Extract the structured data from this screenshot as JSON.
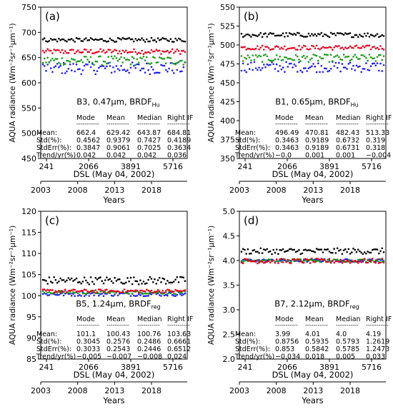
{
  "figure": {
    "colors": {
      "mode": "#e8001c",
      "mean": "#1a1aff",
      "median": "#1a9a1a",
      "right": "#000000"
    },
    "shared": {
      "dsl_label": "DSL (May 04, 2002)",
      "years_label": "Years",
      "dsl_ticks": [
        "241",
        "2066",
        "3891",
        "5716"
      ],
      "year_ticks": [
        "2003",
        "2008",
        "2013",
        "2018"
      ],
      "ylabel": "AQUA radiance (Wm⁻²sr⁻¹μm⁻¹)",
      "col_headers": [
        "Mode",
        "Mean",
        "Median",
        "Right IF"
      ],
      "row_labels": [
        "Mean:",
        "Std(%):",
        "StdErr(%):",
        "Trend/yr(%)"
      ]
    }
  },
  "chart_data": [
    {
      "panel": "(a)",
      "type": "scatter",
      "band_label": "B3, 0.47μm, BRDF",
      "brdf_subscript": "Hu",
      "ylim": [
        450,
        750
      ],
      "yticks": [
        450,
        500,
        550,
        600,
        650,
        700,
        750
      ],
      "xlim": [
        241,
        7000
      ],
      "series": [
        {
          "name": "Mode",
          "level": 662,
          "spread": 5
        },
        {
          "name": "Mean",
          "level": 629,
          "spread": 12
        },
        {
          "name": "Median",
          "level": 644,
          "spread": 9
        },
        {
          "name": "Right IF",
          "level": 685,
          "spread": 4
        }
      ],
      "stats": [
        [
          "662.4",
          "629.42",
          "643.87",
          "684.81"
        ],
        [
          "0.4562",
          "0.9379",
          "0.7427",
          "0.4189"
        ],
        [
          "0.3847",
          "0.9061",
          "0.7025",
          "0.3634"
        ],
        [
          "0.042",
          "0.042",
          "0.042",
          "0.036"
        ]
      ]
    },
    {
      "panel": "(b)",
      "type": "scatter",
      "band_label": "B1, 0.65μm, BRDF",
      "brdf_subscript": "Hu",
      "ylim": [
        350,
        550
      ],
      "yticks": [
        350,
        375,
        400,
        425,
        450,
        475,
        500,
        525,
        550
      ],
      "xlim": [
        241,
        7000
      ],
      "series": [
        {
          "name": "Mode",
          "level": 496.5,
          "spread": 3
        },
        {
          "name": "Mean",
          "level": 471,
          "spread": 7
        },
        {
          "name": "Median",
          "level": 482.5,
          "spread": 5
        },
        {
          "name": "Right IF",
          "level": 513.3,
          "spread": 3
        }
      ],
      "stats": [
        [
          "496.49",
          "470.81",
          "482.43",
          "513.33"
        ],
        [
          "0.3463",
          "0.9189",
          "0.6732",
          "0.319"
        ],
        [
          "0.3463",
          "0.9189",
          "0.6731",
          "0.318"
        ],
        [
          "−0.0",
          "0.001",
          "0.001",
          "−0.004"
        ]
      ]
    },
    {
      "panel": "(c)",
      "type": "scatter",
      "band_label": "B5, 1.24μm, BRDF",
      "brdf_subscript": "reg",
      "ylim": [
        85,
        120
      ],
      "yticks": [
        85,
        90,
        95,
        100,
        105,
        110,
        115,
        120
      ],
      "xlim": [
        241,
        7000
      ],
      "series": [
        {
          "name": "Mean",
          "level": 100.4,
          "spread": 0.5
        },
        {
          "name": "Median",
          "level": 100.8,
          "spread": 0.4
        },
        {
          "name": "Mode",
          "level": 101.1,
          "spread": 0.4
        },
        {
          "name": "Right IF",
          "level": 103.6,
          "spread": 0.9
        }
      ],
      "stats": [
        [
          "101.1",
          "100.43",
          "100.76",
          "103.63"
        ],
        [
          "0.3045",
          "0.2576",
          "0.2486",
          "0.6661"
        ],
        [
          "0.3033",
          "0.2543",
          "0.2446",
          "0.6512"
        ],
        [
          "−0.005",
          "−0.007",
          "−0.008",
          "0.024"
        ]
      ]
    },
    {
      "panel": "(d)",
      "type": "scatter",
      "band_label": "B7, 2.12μm, BRDF",
      "brdf_subscript": "reg",
      "ylim": [
        2.0,
        5.0
      ],
      "yticks": [
        2.0,
        2.5,
        3.0,
        3.5,
        4.0,
        4.5,
        5.0
      ],
      "xlim": [
        241,
        7000
      ],
      "series": [
        {
          "name": "Mean",
          "level": 4.0,
          "spread": 0.03
        },
        {
          "name": "Median",
          "level": 4.0,
          "spread": 0.03
        },
        {
          "name": "Mode",
          "level": 3.99,
          "spread": 0.05
        },
        {
          "name": "Right IF",
          "level": 4.19,
          "spread": 0.06
        }
      ],
      "stats": [
        [
          "3.99",
          "4.01",
          "4.0",
          "4.19"
        ],
        [
          "0.8756",
          "0.5935",
          "0.5793",
          "1.2619"
        ],
        [
          "0.853",
          "0.5842",
          "0.5785",
          "1.2473"
        ],
        [
          "−0.034",
          "0.018",
          "0.005",
          "0.033"
        ]
      ]
    }
  ]
}
